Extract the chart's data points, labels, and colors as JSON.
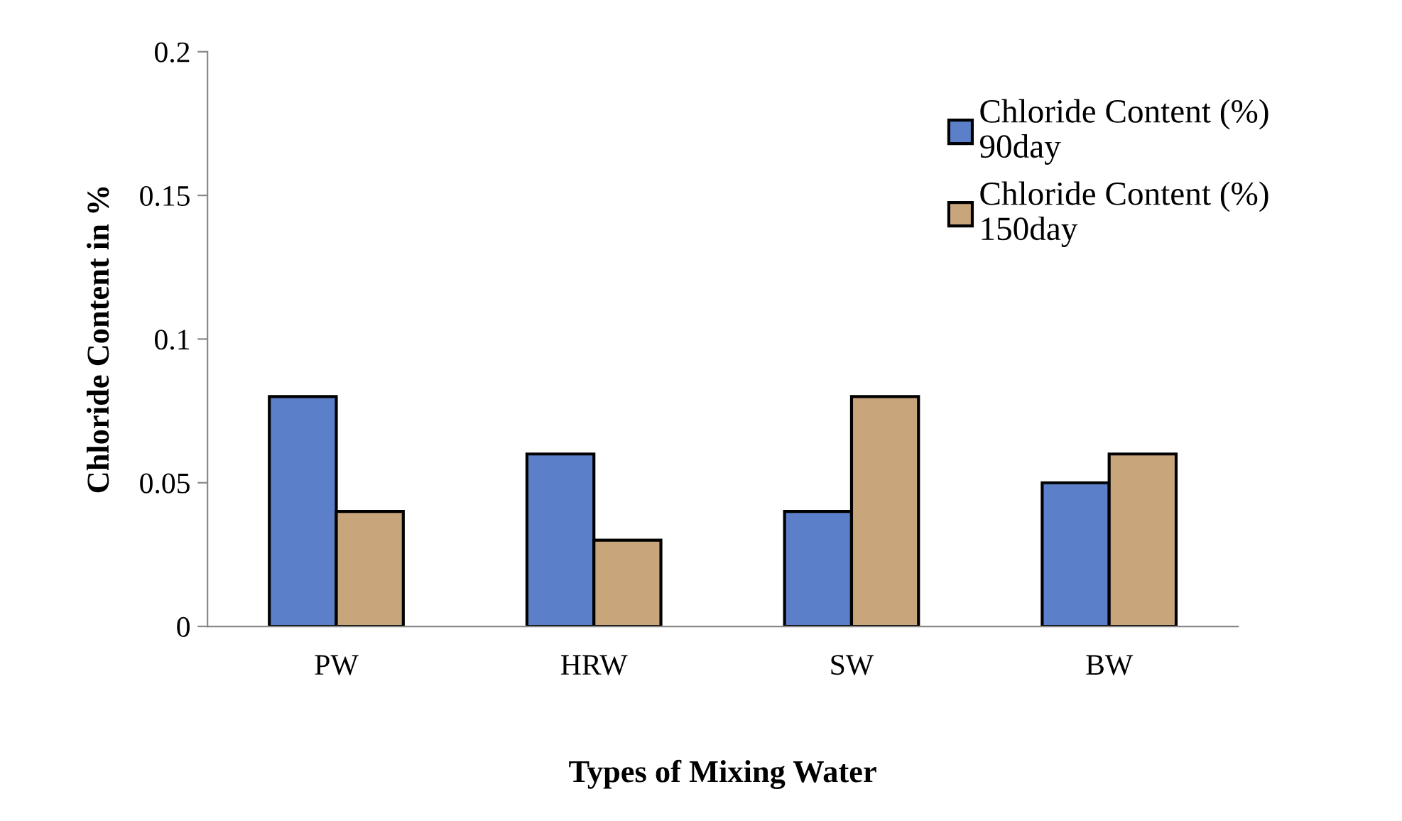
{
  "chart_data": {
    "type": "bar",
    "xlabel": "Types of Mixing Water",
    "ylabel": "Chloride Content in %",
    "categories": [
      "PW",
      "HRW",
      "SW",
      "BW"
    ],
    "series": [
      {
        "name": "Chloride Content (%)\n90day",
        "color": "#5b7fc8",
        "values": [
          0.08,
          0.06,
          0.04,
          0.05
        ]
      },
      {
        "name": "Chloride Content (%)\n150day",
        "color": "#c9a57c",
        "values": [
          0.04,
          0.03,
          0.08,
          0.06
        ]
      }
    ],
    "ylim": [
      0,
      0.2
    ],
    "yticks": [
      0,
      0.05,
      0.1,
      0.15,
      0.2
    ],
    "grid": false,
    "legend": "top right"
  }
}
